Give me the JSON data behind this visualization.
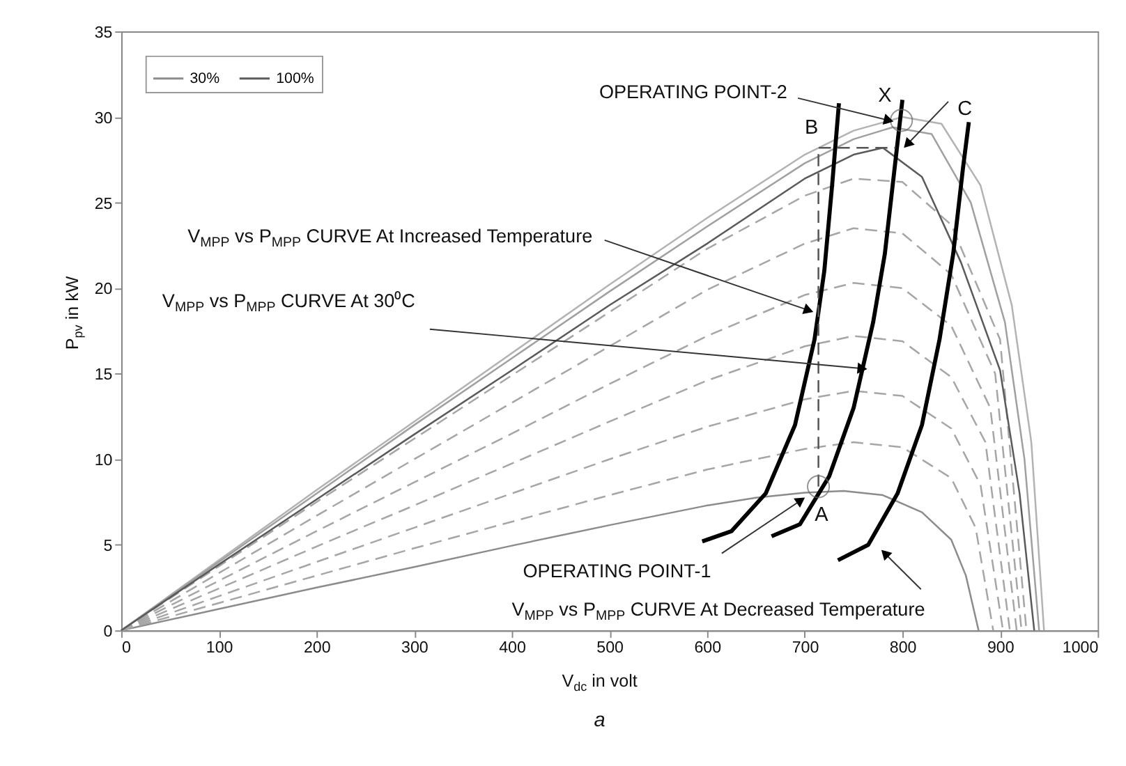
{
  "chart_data": {
    "type": "line",
    "xlabel": "V$_{dc}$ in volt",
    "ylabel": "P$_{pv}$ in kW",
    "xlim": [
      0,
      1000
    ],
    "ylim": [
      0,
      35
    ],
    "xticks": [
      0,
      100,
      200,
      300,
      400,
      500,
      600,
      700,
      800,
      900,
      {
        "value": 1000,
        "label": "1000"
      }
    ],
    "yticks": [
      0,
      5,
      10,
      15,
      20,
      25,
      30,
      35
    ],
    "legend": "top left",
    "series": [
      {
        "name": "30%",
        "color": "#8c8c8c",
        "line_style": "solid",
        "x": [
          0,
          100,
          200,
          300,
          400,
          500,
          600,
          650,
          700,
          740,
          780,
          820,
          850,
          865,
          878
        ],
        "values": [
          0,
          1.25,
          2.5,
          3.7,
          4.95,
          6.15,
          7.3,
          7.75,
          8.05,
          8.15,
          7.9,
          6.9,
          5.3,
          3.2,
          0
        ]
      },
      {
        "color": "#a6a6a6",
        "line_style": "dashed",
        "x": [
          0,
          100,
          200,
          300,
          400,
          500,
          600,
          700,
          750,
          800,
          850,
          875,
          893
        ],
        "values": [
          0,
          1.6,
          3.2,
          4.8,
          6.35,
          7.9,
          9.4,
          10.6,
          11.0,
          10.7,
          8.9,
          6.0,
          0
        ]
      },
      {
        "color": "#a6a6a6",
        "line_style": "dashed",
        "x": [
          0,
          100,
          200,
          300,
          400,
          500,
          600,
          700,
          750,
          800,
          850,
          880,
          903
        ],
        "values": [
          0,
          2.0,
          4.0,
          6.0,
          8.0,
          10.0,
          11.9,
          13.5,
          14.0,
          13.7,
          11.8,
          8.5,
          0
        ]
      },
      {
        "color": "#a6a6a6",
        "line_style": "dashed",
        "x": [
          0,
          100,
          200,
          300,
          400,
          500,
          600,
          700,
          750,
          800,
          850,
          885,
          910
        ],
        "values": [
          0,
          2.45,
          4.9,
          7.3,
          9.75,
          12.2,
          14.6,
          16.6,
          17.2,
          16.9,
          14.8,
          11.0,
          0
        ]
      },
      {
        "color": "#a6a6a6",
        "line_style": "dashed",
        "x": [
          0,
          100,
          200,
          300,
          400,
          500,
          600,
          700,
          750,
          800,
          850,
          890,
          917
        ],
        "values": [
          0,
          2.9,
          5.8,
          8.65,
          11.5,
          14.4,
          17.2,
          19.6,
          20.3,
          20.0,
          17.8,
          13.0,
          0
        ]
      },
      {
        "color": "#a6a6a6",
        "line_style": "dashed",
        "x": [
          0,
          100,
          200,
          300,
          400,
          500,
          600,
          700,
          750,
          800,
          850,
          895,
          922
        ],
        "values": [
          0,
          3.35,
          6.7,
          10.0,
          13.3,
          16.6,
          19.9,
          22.6,
          23.5,
          23.2,
          20.8,
          15.0,
          0
        ]
      },
      {
        "color": "#a6a6a6",
        "line_style": "dashed",
        "x": [
          0,
          100,
          200,
          300,
          400,
          500,
          600,
          700,
          750,
          800,
          850,
          900,
          927
        ],
        "values": [
          0,
          3.75,
          7.5,
          11.2,
          14.9,
          18.6,
          22.3,
          25.4,
          26.4,
          26.2,
          23.7,
          17.0,
          0
        ]
      },
      {
        "color": "#b3b3b3",
        "line_style": "solid",
        "x": [
          0,
          100,
          200,
          300,
          400,
          500,
          600,
          700,
          750,
          800,
          840,
          880,
          912,
          932,
          945
        ],
        "values": [
          0,
          4.1,
          8.2,
          12.2,
          16.2,
          20.2,
          24.1,
          27.8,
          29.2,
          30.0,
          29.6,
          26.0,
          19.0,
          11.0,
          0
        ]
      },
      {
        "color": "#a0a0a0",
        "line_style": "solid",
        "x": [
          0,
          100,
          200,
          300,
          400,
          500,
          600,
          700,
          750,
          790,
          830,
          870,
          905,
          925,
          940
        ],
        "values": [
          0,
          4.0,
          8.0,
          12.0,
          15.9,
          19.8,
          23.6,
          27.3,
          28.7,
          29.4,
          29.0,
          25.0,
          18.0,
          10.0,
          0
        ]
      },
      {
        "name": "100%",
        "color": "#5a5a5a",
        "line_style": "solid",
        "x": [
          0,
          100,
          200,
          300,
          400,
          500,
          600,
          700,
          750,
          780,
          820,
          860,
          900,
          920,
          935
        ],
        "values": [
          0,
          3.85,
          7.65,
          11.45,
          15.2,
          19.0,
          22.6,
          26.4,
          27.8,
          28.2,
          26.5,
          21.5,
          15.2,
          8.0,
          0
        ]
      },
      {
        "color": "#000000",
        "line_style": "solid",
        "x": [
          595,
          625,
          660,
          690,
          710,
          720,
          728,
          735
        ],
        "values": [
          5.2,
          5.8,
          8.0,
          12.0,
          17.0,
          21.0,
          26.0,
          30.8
        ]
      },
      {
        "color": "#000000",
        "line_style": "solid",
        "x": [
          666,
          695,
          725,
          750,
          770,
          782,
          792,
          800
        ],
        "values": [
          5.5,
          6.2,
          9.0,
          13.0,
          18.0,
          22.0,
          27.0,
          31.0
        ]
      },
      {
        "color": "#000000",
        "line_style": "solid",
        "x": [
          734,
          765,
          795,
          820,
          838,
          852,
          862,
          868
        ],
        "values": [
          4.1,
          5.0,
          8.0,
          12.0,
          17.0,
          22.0,
          27.0,
          29.7
        ]
      },
      {
        "color": "#555555",
        "line_style": "dashed",
        "x": [
          714,
          714,
          793
        ],
        "values": [
          8.4,
          28.2,
          28.2
        ]
      },
      {
        "type": "scatter",
        "marker": "circle",
        "color": "#666666",
        "x": [
          714,
          799
        ],
        "values": [
          8.4,
          29.8
        ]
      }
    ],
    "annotations": [
      {
        "text": "OPERATING POINT-2",
        "x": 786,
        "y": 29.8
      },
      {
        "text": "V$_{MPP}$ vs P$_{MPP}$ CURVE At Increased Temperature",
        "x": 704,
        "y": 18.7
      },
      {
        "text": "V$_{MPP}$ vs P$_{MPP}$ CURVE At 30⁰C",
        "x": 759,
        "y": 15.3
      },
      {
        "text": "OPERATING POINT-1",
        "x": 696,
        "y": 7.6
      },
      {
        "text": "V$_{MPP}$ vs P$_{MPP}$ CURVE At Decreased Temperature",
        "x": 782,
        "y": 4.5
      },
      {
        "text": "C",
        "x": 805,
        "y": 28.4
      },
      {
        "text": "A",
        "x": 714,
        "y": 8.4
      },
      {
        "text": "B",
        "x": 714,
        "y": 28.2
      },
      "X",
      "a"
    ]
  }
}
